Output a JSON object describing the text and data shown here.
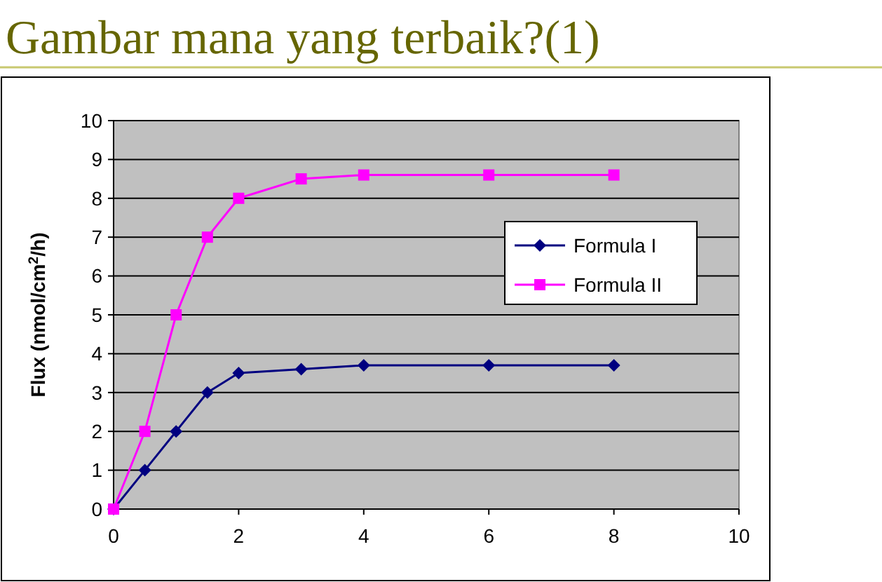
{
  "chart_data": {
    "type": "line",
    "title": "Gambar mana yang terbaik?(1)",
    "ylabel": "Flux (nmol/cm$^{2}$/h)",
    "x": [
      0,
      0.5,
      1,
      1.5,
      2,
      3,
      4,
      6,
      8
    ],
    "series": [
      {
        "name": "Formula I",
        "color": "#000080",
        "marker": "diamond",
        "values": [
          0,
          1,
          2,
          3,
          3.5,
          3.6,
          3.7,
          3.7,
          3.7
        ]
      },
      {
        "name": "Formula II",
        "color": "#ff00ff",
        "marker": "square",
        "values": [
          0,
          2,
          5,
          7,
          8,
          8.5,
          8.6,
          8.6,
          8.6
        ]
      }
    ],
    "xlim": [
      0,
      10
    ],
    "xticks": [
      0,
      2,
      4,
      6,
      8,
      10
    ],
    "ylim": [
      0,
      10
    ],
    "yticks": [
      0,
      1,
      2,
      3,
      4,
      5,
      6,
      7,
      8,
      9,
      10
    ],
    "grid": "y",
    "legend": "right",
    "line_style": "solid"
  }
}
